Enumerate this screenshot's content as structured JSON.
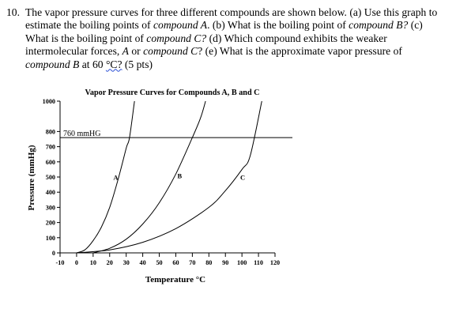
{
  "question": {
    "number": "10.",
    "line1": "The vapor pressure curves for three different compounds are shown below. (a) Use this graph to",
    "line2_a": "estimate the boiling points of ",
    "line2_b": "compound A",
    "line2_c": ". (b) What is the boiling point of ",
    "line2_d": "compound B?",
    "line2_e": " (c)",
    "line3_a": "What is the boiling point of ",
    "line3_b": "compound C?",
    "line3_c": " (d) Which compound exhibits the weaker",
    "line4_a": "intermolecular forces, ",
    "line4_b": "A",
    "line4_c": " or ",
    "line4_d": "compound C",
    "line4_e": "? (e) What is the approximate vapor pressure of",
    "line5_a": "compound B",
    "line5_b": " at 60 ",
    "line5_c": "°C?",
    "line5_d": " (5 pts)"
  },
  "chart_data": {
    "type": "line",
    "title": "Vapor Pressure Curves for Compounds A, B and C",
    "xlabel": "Temperature °C",
    "ylabel": "Pressure (mmHg)",
    "xlim": [
      -10,
      120
    ],
    "ylim": [
      0,
      1000
    ],
    "x_ticks": [
      -10,
      0,
      10,
      20,
      30,
      40,
      50,
      60,
      70,
      80,
      90,
      100,
      110,
      120
    ],
    "y_ticks": [
      0,
      100,
      200,
      300,
      400,
      500,
      600,
      700,
      800,
      1000
    ],
    "reference_line": {
      "y": 760,
      "label": "760 mmHG"
    },
    "series": [
      {
        "name": "A",
        "x": [
          0,
          5,
          10,
          15,
          20,
          25,
          30,
          32,
          35
        ],
        "y": [
          0,
          20,
          80,
          170,
          300,
          480,
          690,
          760,
          1000
        ]
      },
      {
        "name": "B",
        "x": [
          10,
          20,
          30,
          40,
          50,
          60,
          70,
          75,
          78
        ],
        "y": [
          0,
          30,
          90,
          190,
          330,
          520,
          760,
          890,
          1000
        ]
      },
      {
        "name": "C",
        "x": [
          0,
          20,
          40,
          60,
          80,
          90,
          100,
          105,
          112
        ],
        "y": [
          0,
          20,
          70,
          160,
          300,
          410,
          550,
          640,
          1000
        ]
      }
    ],
    "grid": false,
    "legend": "none"
  }
}
